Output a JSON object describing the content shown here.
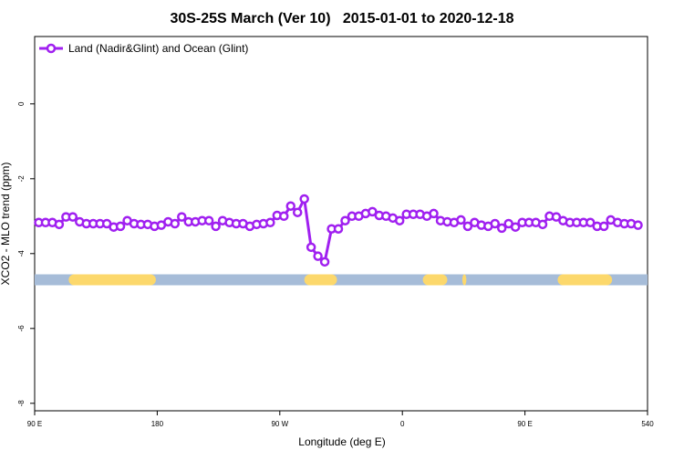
{
  "chart_data": {
    "type": "line",
    "title": "30S-25S March (Ver 10)   2015-01-01 to 2020-12-18",
    "x_label": "Longitude (deg E)",
    "y_label": "XCO2 - MLO trend (ppm)",
    "x": [
      93,
      98,
      103,
      108,
      113,
      118,
      123,
      128,
      133,
      138,
      143,
      148,
      153,
      158,
      163,
      168,
      173,
      178,
      183,
      188,
      193,
      198,
      203,
      208,
      213,
      218,
      223,
      228,
      233,
      238,
      243,
      248,
      253,
      258,
      263,
      268,
      273,
      278,
      283,
      288,
      293,
      298,
      303,
      308,
      313,
      318,
      323,
      328,
      333,
      338,
      343,
      348,
      353,
      358,
      363,
      368,
      373,
      378,
      383,
      388,
      393,
      398,
      403,
      408,
      413,
      418,
      423,
      428,
      433,
      438,
      443,
      448,
      453,
      458,
      463,
      468,
      473,
      478,
      483,
      488,
      493,
      498,
      503,
      508,
      513,
      518,
      523,
      528,
      533
    ],
    "series": [
      {
        "name": "Land (Nadir&Glint) and Ocean (Glint)",
        "color": "#a020f0",
        "values": [
          -3.17,
          -3.17,
          -3.17,
          -3.22,
          -3.02,
          -3.02,
          -3.15,
          -3.2,
          -3.2,
          -3.2,
          -3.2,
          -3.29,
          -3.27,
          -3.12,
          -3.2,
          -3.22,
          -3.22,
          -3.27,
          -3.24,
          -3.15,
          -3.2,
          -3.02,
          -3.15,
          -3.15,
          -3.12,
          -3.12,
          -3.27,
          -3.12,
          -3.17,
          -3.2,
          -3.2,
          -3.27,
          -3.22,
          -3.2,
          -3.17,
          -2.98,
          -3.0,
          -2.73,
          -2.9,
          -2.54,
          -3.83,
          -4.07,
          -4.22,
          -3.34,
          -3.34,
          -3.12,
          -3.0,
          -3.0,
          -2.93,
          -2.88,
          -2.98,
          -3.0,
          -3.05,
          -3.12,
          -2.95,
          -2.95,
          -2.95,
          -3.0,
          -2.93,
          -3.12,
          -3.15,
          -3.17,
          -3.1,
          -3.27,
          -3.17,
          -3.24,
          -3.27,
          -3.2,
          -3.32,
          -3.2,
          -3.29,
          -3.17,
          -3.17,
          -3.17,
          -3.22,
          -3.0,
          -3.02,
          -3.12,
          -3.17,
          -3.17,
          -3.17,
          -3.17,
          -3.27,
          -3.27,
          -3.1,
          -3.17,
          -3.2,
          -3.2,
          -3.24
        ]
      }
    ],
    "surface_band": {
      "level": -4.7,
      "ocean_color": "#a6bcd8",
      "land_color": "#fcd86c",
      "land_segments": [
        [
          115,
          179
        ],
        [
          288,
          312
        ],
        [
          375,
          393
        ],
        [
          404,
          407
        ],
        [
          474,
          514
        ]
      ]
    },
    "xlim": [
      90,
      540
    ],
    "xticks": [
      {
        "value": 90,
        "label": "90 E"
      },
      180,
      {
        "value": 270,
        "label": "90 W"
      },
      {
        "value": 360,
        "label": "0"
      },
      {
        "value": 450,
        "label": "90 E"
      },
      540
    ],
    "ylim": [
      -8.2,
      1.8
    ],
    "yticks": [
      0,
      -2,
      -4,
      -6,
      -8
    ],
    "legend": "top-left"
  }
}
